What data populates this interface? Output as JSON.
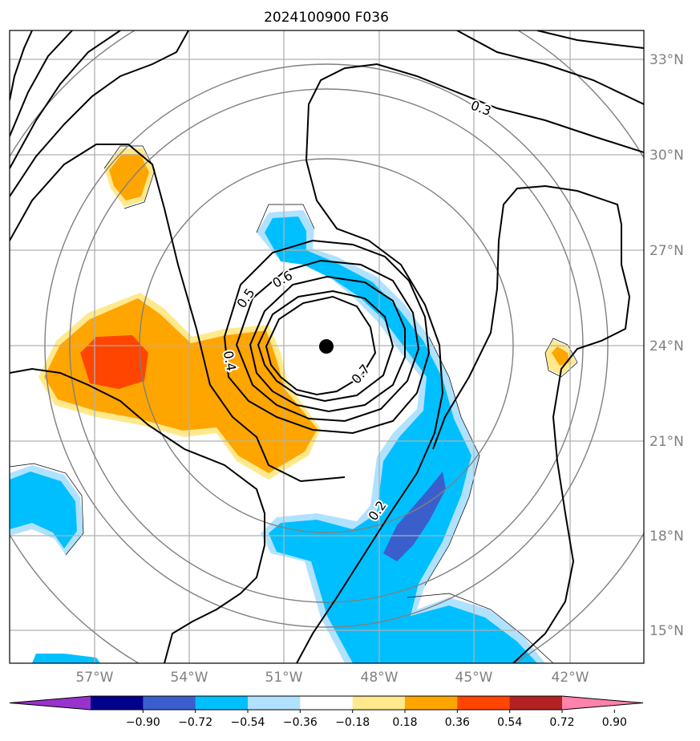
{
  "title": "2024100900 F036",
  "map": {
    "lon_labels": [
      "57°W",
      "54°W",
      "51°W",
      "48°W",
      "45°W",
      "42°W"
    ],
    "lat_labels": [
      "33°N",
      "30°N",
      "27°N",
      "24°N",
      "21°N",
      "18°N",
      "15°N"
    ],
    "center_marker": "storm-center-dot",
    "range_rings": 4,
    "contour_labels": [
      "0.2",
      "0.3",
      "0.4",
      "0.5",
      "0.6",
      "0.7"
    ]
  },
  "colorbar": {
    "ticks": [
      "−0.90",
      "−0.72",
      "−0.54",
      "−0.36",
      "−0.18",
      "0.18",
      "0.36",
      "0.54",
      "0.72",
      "0.90"
    ],
    "colors": [
      "#9932cc",
      "#00008b",
      "#3a5fcd",
      "#00bfff",
      "#b0e2ff",
      "#ffffff",
      "#ffe98c",
      "#ffa500",
      "#ff4500",
      "#b22222",
      "#ff82ab"
    ]
  },
  "palette": {
    "neg_strong": "#3a5fcd",
    "neg": "#00bfff",
    "neg_weak": "#b0e2ff",
    "pos_weak": "#ffe98c",
    "pos": "#ffa500",
    "pos_strong": "#ff4500"
  }
}
